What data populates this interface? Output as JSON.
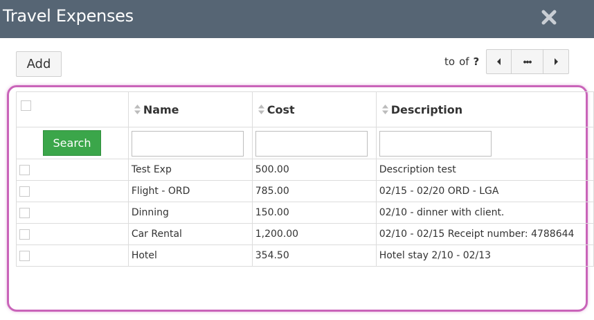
{
  "window": {
    "title": "Travel Expenses"
  },
  "toolbar": {
    "add_label": "Add"
  },
  "pager": {
    "to_label": "to",
    "of_label": "of",
    "total": "?",
    "more_label": "•••"
  },
  "table": {
    "headers": [
      "Name",
      "Cost",
      "Description"
    ],
    "search_label": "Search",
    "filter_values": [
      "",
      "",
      ""
    ],
    "rows": [
      {
        "name": "Test Exp",
        "cost": "500.00",
        "description": "Description test"
      },
      {
        "name": "Flight - ORD",
        "cost": "785.00",
        "description": "02/15 - 02/20 ORD - LGA"
      },
      {
        "name": "Dinning",
        "cost": "150.00",
        "description": "02/10 - dinner with client."
      },
      {
        "name": "Car Rental",
        "cost": "1,200.00",
        "description": "02/10 - 02/15 Receipt number: 4788644"
      },
      {
        "name": "Hotel",
        "cost": "354.50",
        "description": "Hotel stay 2/10 - 02/13"
      }
    ]
  },
  "icons": {
    "close": "close-icon",
    "prev": "caret-left-icon",
    "next": "caret-right-icon",
    "sort": "sort-icon"
  },
  "colors": {
    "titlebar": "#566574",
    "search_button": "#3ba64a",
    "highlight": "#c964b9"
  }
}
